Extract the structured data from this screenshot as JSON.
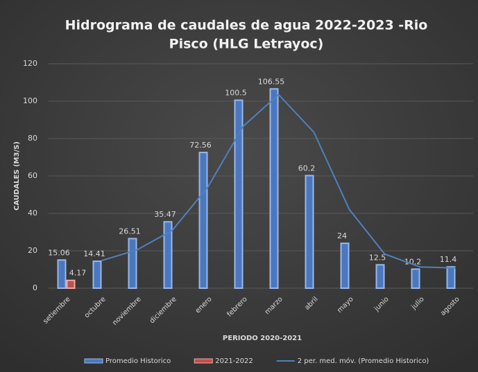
{
  "chart_data": {
    "type": "bar",
    "title": "Hidrograma de caudales  de agua 2022-2023 -Rio",
    "subtitle": "Pisco (HLG Letrayoc)",
    "x_label": "PERIODO 2020-2021",
    "y_label": "CAUDALES (M3/S)",
    "categories": [
      "setiembre",
      "octubre",
      "noviembre",
      "diciembre",
      "enero",
      "febrero",
      "marzo",
      "abril",
      "mayo",
      "junio",
      "julio",
      "agosto"
    ],
    "series": [
      {
        "name": "Promedio Historico",
        "color": "#4a78c0",
        "values": [
          15.06,
          14.41,
          26.51,
          35.47,
          72.56,
          100.5,
          106.55,
          60.2,
          24,
          12.5,
          10.2,
          11.4
        ]
      },
      {
        "name": "2021-2022",
        "color": "#c0504d",
        "values": [
          4.17,
          null,
          null,
          null,
          null,
          null,
          null,
          null,
          null,
          null,
          null,
          null
        ]
      },
      {
        "name": "2 per. med. móv. (Promedio Historico)",
        "color": "#4f81bd",
        "type": "line",
        "values": [
          null,
          14.735,
          20.46,
          31.0,
          54.015,
          86.53,
          103.525,
          83.375,
          42.1,
          18.25,
          11.35,
          10.8
        ]
      }
    ],
    "ylim": [
      0,
      120
    ],
    "yticks": [
      0,
      20,
      40,
      60,
      80,
      100,
      120
    ],
    "grid": true,
    "legend": "bottom"
  }
}
